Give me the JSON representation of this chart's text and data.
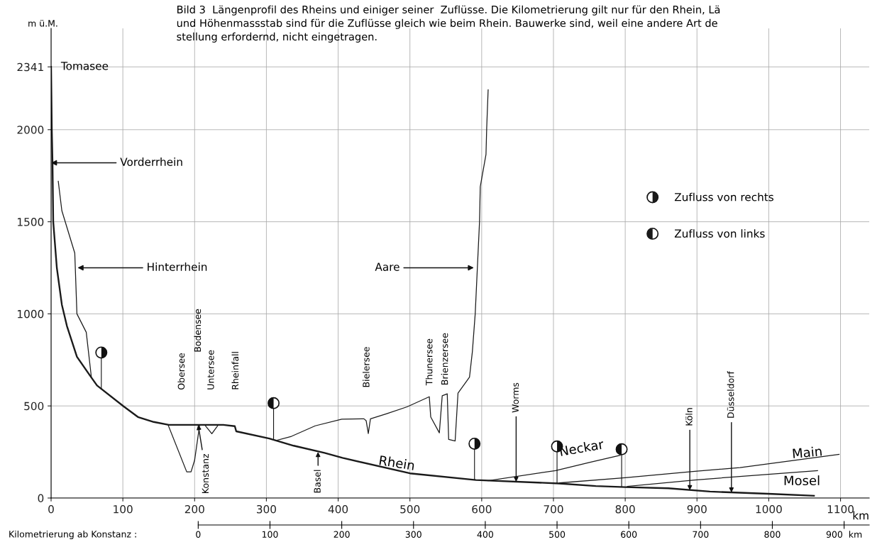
{
  "chart_data": {
    "type": "line",
    "title": "Bild 3  Längenprofil des Rheins und einiger seiner  Zuflüsse. Die Kilometrierung gilt nur für den Rhein, Lä\nund Höhenmassstab sind für die Zuflüsse gleich wie beim Rhein. Bauwerke sind, weil eine andere Art de\nstellung erfordernd, nicht eingetragen.",
    "xlabel": "km",
    "ylabel": "m ü.M.",
    "x2label": "Kilometrierung ab Konstanz :",
    "xlim": [
      0,
      1140
    ],
    "xticks": [
      0,
      100,
      200,
      300,
      400,
      500,
      600,
      700,
      800,
      900,
      1000,
      1100
    ],
    "ylim": [
      0,
      2550
    ],
    "yticks": [
      0,
      500,
      1000,
      1500,
      2000,
      2341
    ],
    "x2lim": [
      -205,
      935
    ],
    "x2ticks": [
      0,
      100,
      200,
      300,
      400,
      500,
      600,
      700,
      800,
      {
        "value": 900,
        "label": "900  km"
      }
    ],
    "grid": true,
    "legend": "right",
    "series": [
      {
        "color": "#1a1a1a",
        "x": [
          0,
          1,
          2,
          3,
          8,
          15,
          22,
          36,
          54,
          64,
          101,
          121,
          143,
          164,
          240,
          256,
          258,
          304,
          338,
          381,
          406,
          500,
          592,
          708,
          759,
          800,
          860,
          918,
          1005,
          1063
        ],
        "values": [
          2341,
          2000,
          1820,
          1500,
          1250,
          1050,
          935,
          767,
          666,
          611,
          498,
          440,
          413,
          397,
          397,
          390,
          362,
          323,
          284,
          245,
          218,
          134,
          98,
          79,
          65,
          59,
          53,
          35,
          22,
          12
        ]
      },
      {
        "color": "#1a1a1a",
        "x": [
          10,
          15,
          33,
          36,
          49,
          56
        ],
        "values": [
          1720,
          1560,
          1330,
          1000,
          900,
          660
        ]
      },
      {
        "color": "#1a1a1a",
        "x": [
          313,
          335,
          368,
          405,
          436,
          439,
          442,
          445,
          467,
          496,
          527,
          529,
          541,
          545,
          552,
          554,
          563,
          567,
          580,
          583,
          587,
          591,
          597,
          598,
          606,
          607,
          609
        ],
        "values": [
          312,
          335,
          392,
          428,
          430,
          420,
          350,
          430,
          457,
          495,
          550,
          440,
          354,
          555,
          566,
          318,
          310,
          570,
          640,
          656,
          794,
          1002,
          1501,
          1690,
          1866,
          2012,
          2216
        ]
      },
      {
        "color": "#1a1a1a",
        "x": [
          163,
          189,
          195,
          200,
          207
        ],
        "values": [
          397,
          142,
          142,
          205,
          397
        ]
      },
      {
        "color": "#1a1a1a",
        "x": [
          214,
          224,
          233
        ],
        "values": [
          397,
          349,
          397
        ]
      },
      {
        "color": "#1a1a1a",
        "x": [
          609,
          703,
          751,
          793
        ],
        "values": [
          94,
          149,
          194,
          232
        ]
      },
      {
        "color": "#1a1a1a",
        "x": [
          708,
          800,
          897,
          960,
          1098
        ],
        "values": [
          82,
          110,
          145,
          165,
          237
        ]
      },
      {
        "color": "#1a1a1a",
        "x": [
          803,
          897,
          1068
        ],
        "values": [
          63,
          98,
          149
        ]
      },
      {
        "type": "scatter",
        "name": "Zufluss von rechts",
        "color": "#111111",
        "marker": "circle",
        "x": [
          70,
          590,
          705
        ],
        "values": [
          790,
          295,
          280
        ],
        "errors": [
          [
            590,
            790
          ],
          [
            98,
            295
          ],
          [
            80,
            280
          ]
        ]
      },
      {
        "type": "scatter",
        "name": "Zufluss von links",
        "color": "#111111",
        "marker": "circle",
        "x": [
          310,
          795
        ],
        "values": [
          515,
          265
        ],
        "errors": [
          [
            320,
            515
          ],
          [
            60,
            265
          ]
        ]
      }
    ],
    "annotations": [
      {
        "text": "Tomasee",
        "x": 0,
        "y": 2341
      },
      {
        "text": "Vorderrhein",
        "x": 0,
        "y": 1820
      },
      {
        "text": "Hinterrhein",
        "x": 37,
        "y": 1250
      },
      {
        "text": "Aare",
        "x": 589,
        "y": 1250
      },
      "Obersee",
      "Untersee",
      "Bodensee",
      "Rheinfall",
      {
        "text": "Konstanz",
        "x": 205,
        "y": 397
      },
      {
        "text": "Basel",
        "x": 372,
        "y": 250
      },
      "Bielersee",
      "Thunersee",
      "Brienzersee",
      {
        "text": "Rhein",
        "x": 455,
        "y": 185
      },
      {
        "text": "Worms",
        "x": 648,
        "y": 88
      },
      {
        "text": "Neckar",
        "x": 700,
        "y": 149
      },
      {
        "text": "Köln",
        "x": 890,
        "y": 42
      },
      {
        "text": "Düsseldorf",
        "x": 948,
        "y": 30
      },
      "Main",
      "Mosel"
    ]
  }
}
